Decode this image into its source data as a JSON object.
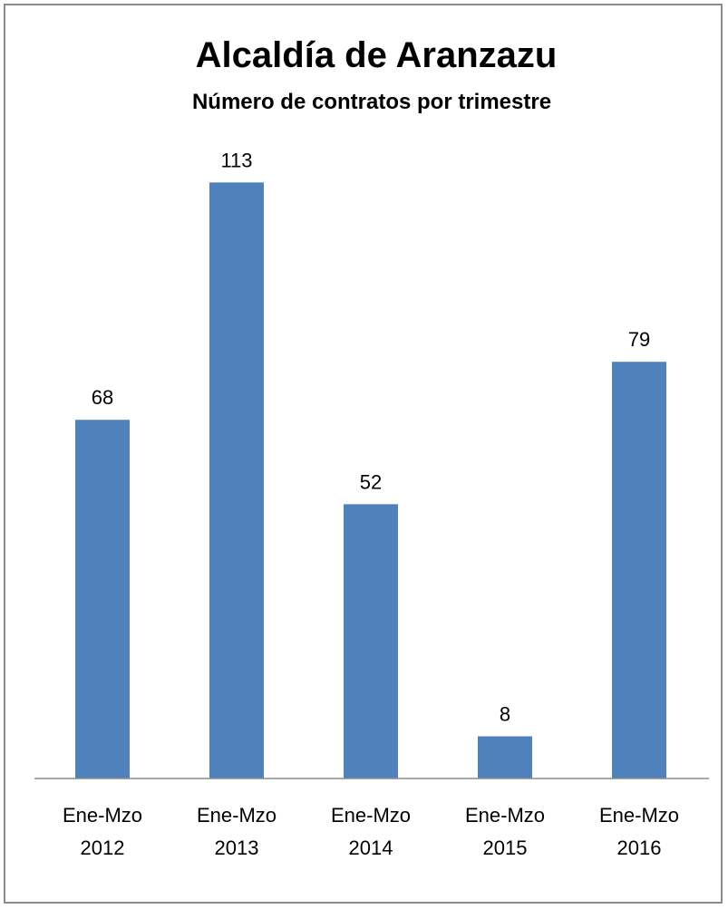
{
  "chart_data": {
    "type": "bar",
    "title": "Alcaldía de Aranzazu",
    "subtitle": "Número de contratos por trimestre",
    "categories": [
      [
        "Ene-Mzo",
        "2012"
      ],
      [
        "Ene-Mzo",
        "2013"
      ],
      [
        "Ene-Mzo",
        "2014"
      ],
      [
        "Ene-Mzo",
        "2015"
      ],
      [
        "Ene-Mzo",
        "2016"
      ]
    ],
    "values": [
      68,
      113,
      52,
      8,
      79
    ],
    "data_labels": [
      "68",
      "113",
      "52",
      "8",
      "79"
    ],
    "ylim": [
      0,
      120
    ],
    "grid": false,
    "legend": "none",
    "colors": {
      "bar": "#4f81bd",
      "axis": "#8c8c8c",
      "frame": "#8c8c8c"
    }
  }
}
